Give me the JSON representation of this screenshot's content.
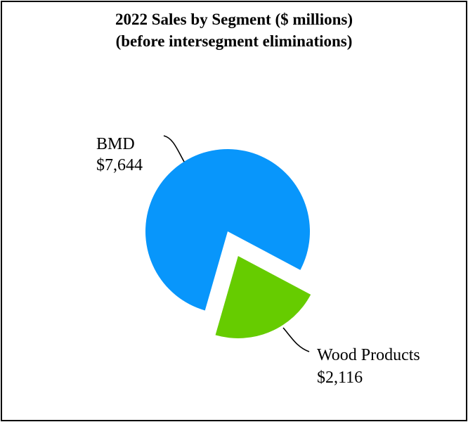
{
  "chart_data": {
    "type": "pie",
    "title": [
      "2022 Sales by Segment ($ millions)",
      "(before intersegment eliminations)"
    ],
    "slices": [
      {
        "label": "BMD",
        "value": 7644,
        "value_label": "$7,644",
        "color": "#0896FB",
        "exploded": false
      },
      {
        "label": "Wood Products",
        "value": 2116,
        "value_label": "$2,116",
        "color": "#66CC00",
        "exploded": true
      }
    ]
  }
}
